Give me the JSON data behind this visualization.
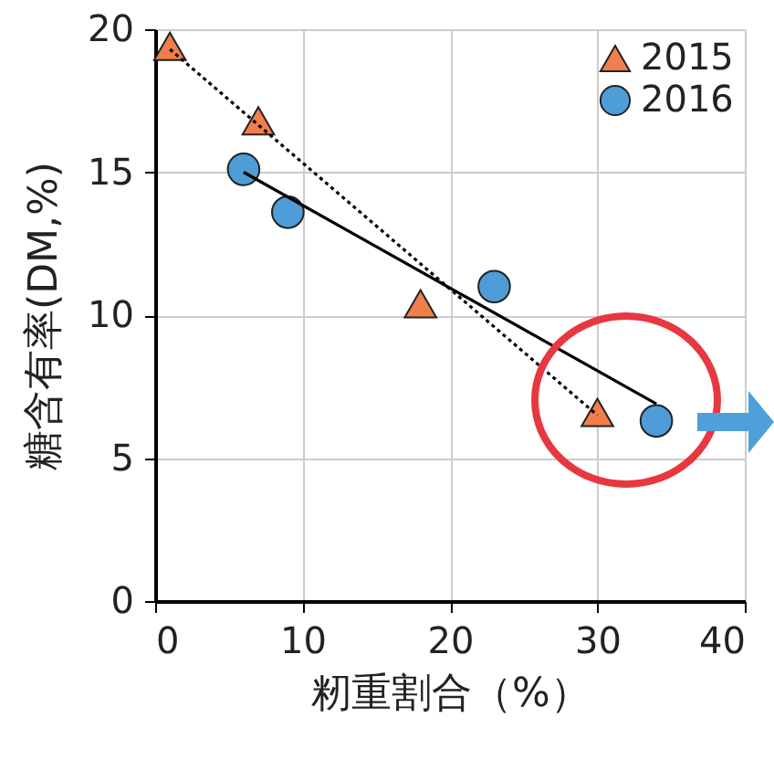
{
  "chart_data": {
    "type": "scatter",
    "xlabel": "籾重割合（%）",
    "ylabel": "糖含有率(DM,%)",
    "xlim": [
      0,
      40
    ],
    "xticks": [
      0,
      10,
      20,
      30,
      40
    ],
    "ylim": [
      0,
      20
    ],
    "yticks": [
      0,
      5,
      10,
      15,
      20
    ],
    "grid": true,
    "legend": "top right",
    "series": [
      {
        "name": "2015",
        "marker": "triangle",
        "color": "#f07f4c",
        "x": [
          1,
          7,
          18,
          30
        ],
        "values": [
          19.4,
          16.8,
          10.4,
          6.6
        ]
      },
      {
        "name": "2016",
        "marker": "circle",
        "color": "#4e9dd6",
        "x": [
          6,
          9,
          23,
          34
        ],
        "values": [
          15.1,
          13.6,
          11,
          6.3
        ]
      },
      {
        "type": "line",
        "color": "#000000",
        "line_style": "dotted",
        "x": [
          1,
          30
        ],
        "values": [
          19.3,
          6.5
        ]
      },
      {
        "type": "line",
        "color": "#000000",
        "line_style": "solid",
        "x": [
          6,
          34
        ],
        "values": [
          15,
          6.9
        ]
      }
    ]
  }
}
